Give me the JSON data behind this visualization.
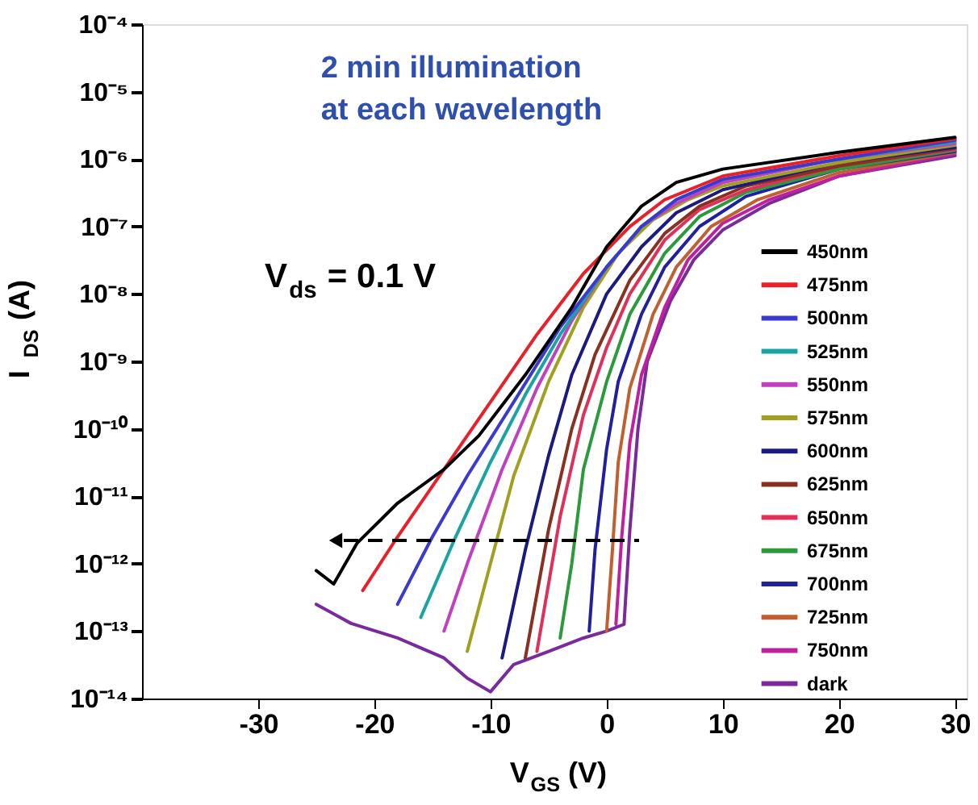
{
  "chart_data": {
    "type": "line",
    "xlabel": "V$_{GS}$ (V)",
    "ylabel": "I$_{DS}$ (A)",
    "annotations": [
      "2 min illumination\nat each wavelength",
      "V$_{ds}$ = 0.1 V"
    ],
    "xlim": [
      -40,
      31
    ],
    "xticks": [
      -30,
      -20,
      -10,
      0,
      10,
      20,
      30
    ],
    "ylim": [
      1e-14,
      0.0001
    ],
    "log": true,
    "yticks": [
      {
        "value": 1e-14,
        "label": "10⁻¹⁴"
      },
      {
        "value": 1e-13,
        "label": "10⁻¹³"
      },
      {
        "value": 1e-12,
        "label": "10⁻¹²"
      },
      {
        "value": 1e-11,
        "label": "10⁻¹¹"
      },
      {
        "value": 1e-10,
        "label": "10⁻¹⁰"
      },
      {
        "value": 1e-09,
        "label": "10⁻⁹"
      },
      {
        "value": 1e-08,
        "label": "10⁻⁸"
      },
      {
        "value": 1e-07,
        "label": "10⁻⁷"
      },
      {
        "value": 1e-06,
        "label": "10⁻⁶"
      },
      {
        "value": 1e-05,
        "label": "10⁻⁵"
      },
      {
        "value": 0.0001,
        "label": "10⁻⁴"
      }
    ],
    "grid": false,
    "legend": "right",
    "marker": "none",
    "line_style": "solid",
    "series": [
      {
        "name": "450nm",
        "color": "#000000",
        "x": [
          -25,
          -23.5,
          -21.5,
          -18,
          -14,
          -11,
          -7,
          -3,
          0,
          3,
          6,
          10,
          20,
          30
        ],
        "values": [
          7.9e-13,
          5e-13,
          2e-12,
          7.9e-12,
          2.5e-11,
          7.9e-11,
          6.3e-10,
          6.3e-09,
          5e-08,
          2e-07,
          4.5e-07,
          7.1e-07,
          1.26e-06,
          2.1e-06
        ]
      },
      {
        "name": "475nm",
        "color": "#e8202a",
        "x": [
          -21,
          -18,
          -14,
          -10,
          -6,
          -2,
          2,
          5,
          10,
          20,
          30
        ],
        "values": [
          4e-13,
          2.5e-12,
          2.5e-11,
          2.5e-10,
          2.5e-09,
          2e-08,
          1e-07,
          2.5e-07,
          5.6e-07,
          1.12e-06,
          2e-06
        ]
      },
      {
        "name": "500nm",
        "color": "#3a3ad0",
        "x": [
          -18,
          -15,
          -12,
          -8,
          -4,
          0,
          3,
          6,
          10,
          20,
          30
        ],
        "values": [
          2.5e-13,
          2.5e-12,
          2e-11,
          2.5e-10,
          3.2e-09,
          2.5e-08,
          1e-07,
          2.5e-07,
          5e-07,
          1e-06,
          1.9e-06
        ]
      },
      {
        "name": "525nm",
        "color": "#1aa3a3",
        "x": [
          -16,
          -13,
          -10,
          -7,
          -4,
          0,
          3,
          6,
          10,
          20,
          30
        ],
        "values": [
          1.6e-13,
          2.5e-12,
          3.2e-11,
          3.2e-10,
          2.5e-09,
          2.5e-08,
          1e-07,
          2.5e-07,
          5e-07,
          1e-06,
          1.8e-06
        ]
      },
      {
        "name": "550nm",
        "color": "#c040c0",
        "x": [
          -14,
          -12,
          -9,
          -6,
          -3,
          0,
          3,
          6,
          10,
          20,
          30
        ],
        "values": [
          1e-13,
          1e-12,
          2.5e-11,
          4e-10,
          4e-09,
          2.5e-08,
          1e-07,
          2.2e-07,
          4.5e-07,
          1e-06,
          1.7e-06
        ]
      },
      {
        "name": "575nm",
        "color": "#a0a020",
        "x": [
          -12,
          -10,
          -8,
          -5,
          -2,
          1,
          4,
          7,
          10,
          20,
          30
        ],
        "values": [
          5e-14,
          1e-12,
          2e-11,
          5e-10,
          6.3e-09,
          4e-08,
          1.26e-07,
          2.5e-07,
          4e-07,
          8.9e-07,
          1.6e-06
        ]
      },
      {
        "name": "600nm",
        "color": "#1a1a80",
        "x": [
          -9,
          -7,
          -5,
          -3,
          0,
          3,
          6,
          10,
          20,
          30
        ],
        "values": [
          4e-14,
          1.6e-12,
          4e-11,
          6.3e-10,
          1e-08,
          5e-08,
          1.6e-07,
          3.5e-07,
          8.9e-07,
          1.5e-06
        ]
      },
      {
        "name": "625nm",
        "color": "#8a3020",
        "x": [
          -7,
          -5,
          -3,
          -1,
          2,
          5,
          8,
          12,
          20,
          30
        ],
        "values": [
          4e-14,
          3.2e-12,
          1e-10,
          1.26e-09,
          1.6e-08,
          7.9e-08,
          2e-07,
          4e-07,
          7.9e-07,
          1.45e-06
        ]
      },
      {
        "name": "650nm",
        "color": "#e0305a",
        "x": [
          -6,
          -4,
          -2,
          0,
          2,
          5,
          8,
          12,
          20,
          30
        ],
        "values": [
          5e-14,
          5e-12,
          1.6e-10,
          1.6e-09,
          1e-08,
          6.3e-08,
          1.78e-07,
          3.5e-07,
          7.9e-07,
          1.4e-06
        ]
      },
      {
        "name": "675nm",
        "color": "#2a9a3a",
        "x": [
          -4,
          -3,
          -2,
          0,
          2,
          5,
          8,
          12,
          20,
          30
        ],
        "values": [
          7.9e-14,
          1e-12,
          2.5e-11,
          5e-10,
          5e-09,
          4e-08,
          1.41e-07,
          3.2e-07,
          7.1e-07,
          1.35e-06
        ]
      },
      {
        "name": "700nm",
        "color": "#2020a0",
        "x": [
          -1.5,
          -1,
          0,
          1,
          3,
          5,
          8,
          12,
          20,
          30
        ],
        "values": [
          1e-13,
          1.6e-12,
          5e-11,
          5e-10,
          5e-09,
          2.5e-08,
          1e-07,
          2.8e-07,
          7.1e-07,
          1.3e-06
        ]
      },
      {
        "name": "725nm",
        "color": "#c06030",
        "x": [
          0,
          0.5,
          1,
          2,
          4,
          6,
          9,
          13,
          20,
          30
        ],
        "values": [
          1e-13,
          1.6e-12,
          3.2e-11,
          4e-10,
          5e-09,
          2.5e-08,
          1e-07,
          2.5e-07,
          6.3e-07,
          1.25e-06
        ]
      },
      {
        "name": "750nm",
        "color": "#c020a0",
        "x": [
          0.8,
          1.3,
          2,
          3,
          5,
          7,
          10,
          14,
          20,
          30
        ],
        "values": [
          1.26e-13,
          2.5e-12,
          6.3e-11,
          6.3e-10,
          6.3e-09,
          3.2e-08,
          1.12e-07,
          2.5e-07,
          5.6e-07,
          1.2e-06
        ]
      },
      {
        "name": "dark",
        "color": "#7a2a9a",
        "x": [
          -25,
          -22,
          -18,
          -14,
          -12,
          -10,
          -8,
          -5,
          -2,
          0,
          1.5,
          2,
          2.7,
          3.5,
          5.5,
          7.5,
          10,
          14,
          20,
          30
        ],
        "values": [
          2.5e-13,
          1.3e-13,
          7.9e-14,
          4e-14,
          2e-14,
          1.26e-14,
          3.2e-14,
          5e-14,
          7.9e-14,
          1e-13,
          1.26e-13,
          3.2e-12,
          1e-10,
          1e-09,
          7.9e-09,
          3.2e-08,
          8.9e-08,
          2.2e-07,
          5.6e-07,
          1.12e-06
        ]
      }
    ]
  }
}
